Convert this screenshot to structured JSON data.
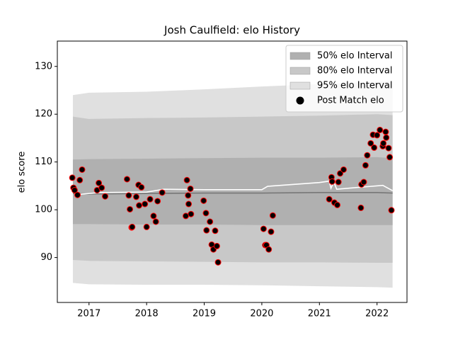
{
  "chart_data": {
    "type": "scatter",
    "title": "Josh Caulfield: elo History",
    "y_label": "elo score",
    "xlim": [
      2016.45,
      2022.52
    ],
    "ylim": [
      80.6,
      135.3
    ],
    "xticks": [
      2017,
      2018,
      2019,
      2020,
      2021,
      2022
    ],
    "yticks": [
      90,
      100,
      110,
      120,
      130
    ],
    "legend": "upper right",
    "band_x": [
      2016.72,
      2017.0,
      2018.0,
      2019.0,
      2020.0,
      2021.0,
      2022.0,
      2022.27
    ],
    "bands": [
      {
        "name": "95% elo Interval",
        "color": "#e0e0e0",
        "upper": [
          124.0,
          124.5,
          124.7,
          125.2,
          125.8,
          126.3,
          126.8,
          127.0
        ],
        "lower": [
          84.7,
          84.4,
          84.3,
          84.3,
          84.2,
          84.0,
          83.8,
          83.7
        ]
      },
      {
        "name": "80% elo Interval",
        "color": "#c8c8c8",
        "upper": [
          119.5,
          119.0,
          119.2,
          119.3,
          119.5,
          119.7,
          120.0,
          119.8
        ],
        "lower": [
          89.5,
          89.3,
          89.2,
          89.1,
          89.0,
          89.0,
          88.9,
          88.9
        ]
      },
      {
        "name": "50% elo Interval",
        "color": "#b0b0b0",
        "upper": [
          110.5,
          110.6,
          110.7,
          110.8,
          110.9,
          110.9,
          111.0,
          110.8
        ],
        "lower": [
          97.0,
          97.0,
          96.9,
          96.9,
          96.8,
          96.8,
          96.8,
          96.8
        ]
      }
    ],
    "lines": [
      {
        "color": "#777777",
        "x": [
          2016.72,
          2017.0,
          2018.0,
          2019.0,
          2020.0,
          2021.0,
          2022.0,
          2022.27
        ],
        "values": [
          103.4,
          103.3,
          103.4,
          103.5,
          103.5,
          103.6,
          103.6,
          103.5
        ]
      },
      {
        "color": "#ffffff",
        "x": [
          2016.72,
          2016.8,
          2017.2,
          2018.0,
          2018.3,
          2019.0,
          2020.0,
          2020.1,
          2021.0,
          2021.17,
          2021.2,
          2021.25,
          2021.3,
          2021.8,
          2022.1,
          2022.27
        ],
        "values": [
          103.8,
          103.2,
          103.6,
          103.7,
          104.3,
          104.2,
          104.2,
          104.9,
          105.7,
          106.0,
          104.5,
          105.8,
          104.3,
          104.8,
          105.1,
          104.0
        ]
      }
    ],
    "x": [
      2016.71,
      2016.73,
      2016.75,
      2016.8,
      2016.84,
      2016.88,
      2017.14,
      2017.17,
      2017.22,
      2017.28,
      2017.66,
      2017.69,
      2017.71,
      2017.74,
      2017.75,
      2017.82,
      2017.86,
      2017.87,
      2017.91,
      2017.97,
      2018.0,
      2018.06,
      2018.12,
      2018.16,
      2018.19,
      2018.27,
      2018.68,
      2018.7,
      2018.72,
      2018.73,
      2018.76,
      2018.77,
      2018.99,
      2019.03,
      2019.04,
      2019.1,
      2019.13,
      2019.16,
      2019.19,
      2019.22,
      2019.24,
      2020.03,
      2020.06,
      2020.08,
      2020.12,
      2020.16,
      2020.19,
      2021.17,
      2021.21,
      2021.22,
      2021.26,
      2021.31,
      2021.33,
      2021.36,
      2021.42,
      2021.72,
      2021.73,
      2021.77,
      2021.8,
      2021.83,
      2021.89,
      2021.93,
      2021.95,
      2022.0,
      2022.05,
      2022.1,
      2022.11,
      2022.15,
      2022.16,
      2022.2,
      2022.22,
      2022.25
    ],
    "series": [
      {
        "name": "Post Match elo",
        "color": "#000000",
        "edge_color": "#ff0000",
        "values": [
          106.7,
          104.6,
          104.1,
          103.1,
          106.2,
          108.4,
          104.1,
          105.6,
          104.6,
          102.8,
          106.4,
          103.0,
          100.1,
          96.3,
          96.4,
          102.7,
          105.2,
          100.9,
          104.7,
          101.2,
          96.4,
          102.2,
          98.7,
          97.5,
          101.8,
          103.6,
          98.7,
          106.2,
          103.0,
          101.2,
          104.4,
          99.1,
          101.9,
          99.3,
          95.7,
          97.5,
          92.7,
          91.7,
          95.6,
          92.4,
          89.0,
          96.0,
          92.6,
          92.6,
          91.7,
          95.4,
          98.8,
          102.2,
          106.8,
          105.9,
          101.5,
          101.0,
          105.8,
          107.6,
          108.4,
          100.4,
          105.3,
          105.8,
          109.3,
          111.4,
          113.9,
          115.7,
          113.0,
          115.6,
          116.7,
          113.3,
          113.9,
          116.3,
          115.1,
          112.9,
          111.0,
          99.9
        ]
      }
    ]
  }
}
